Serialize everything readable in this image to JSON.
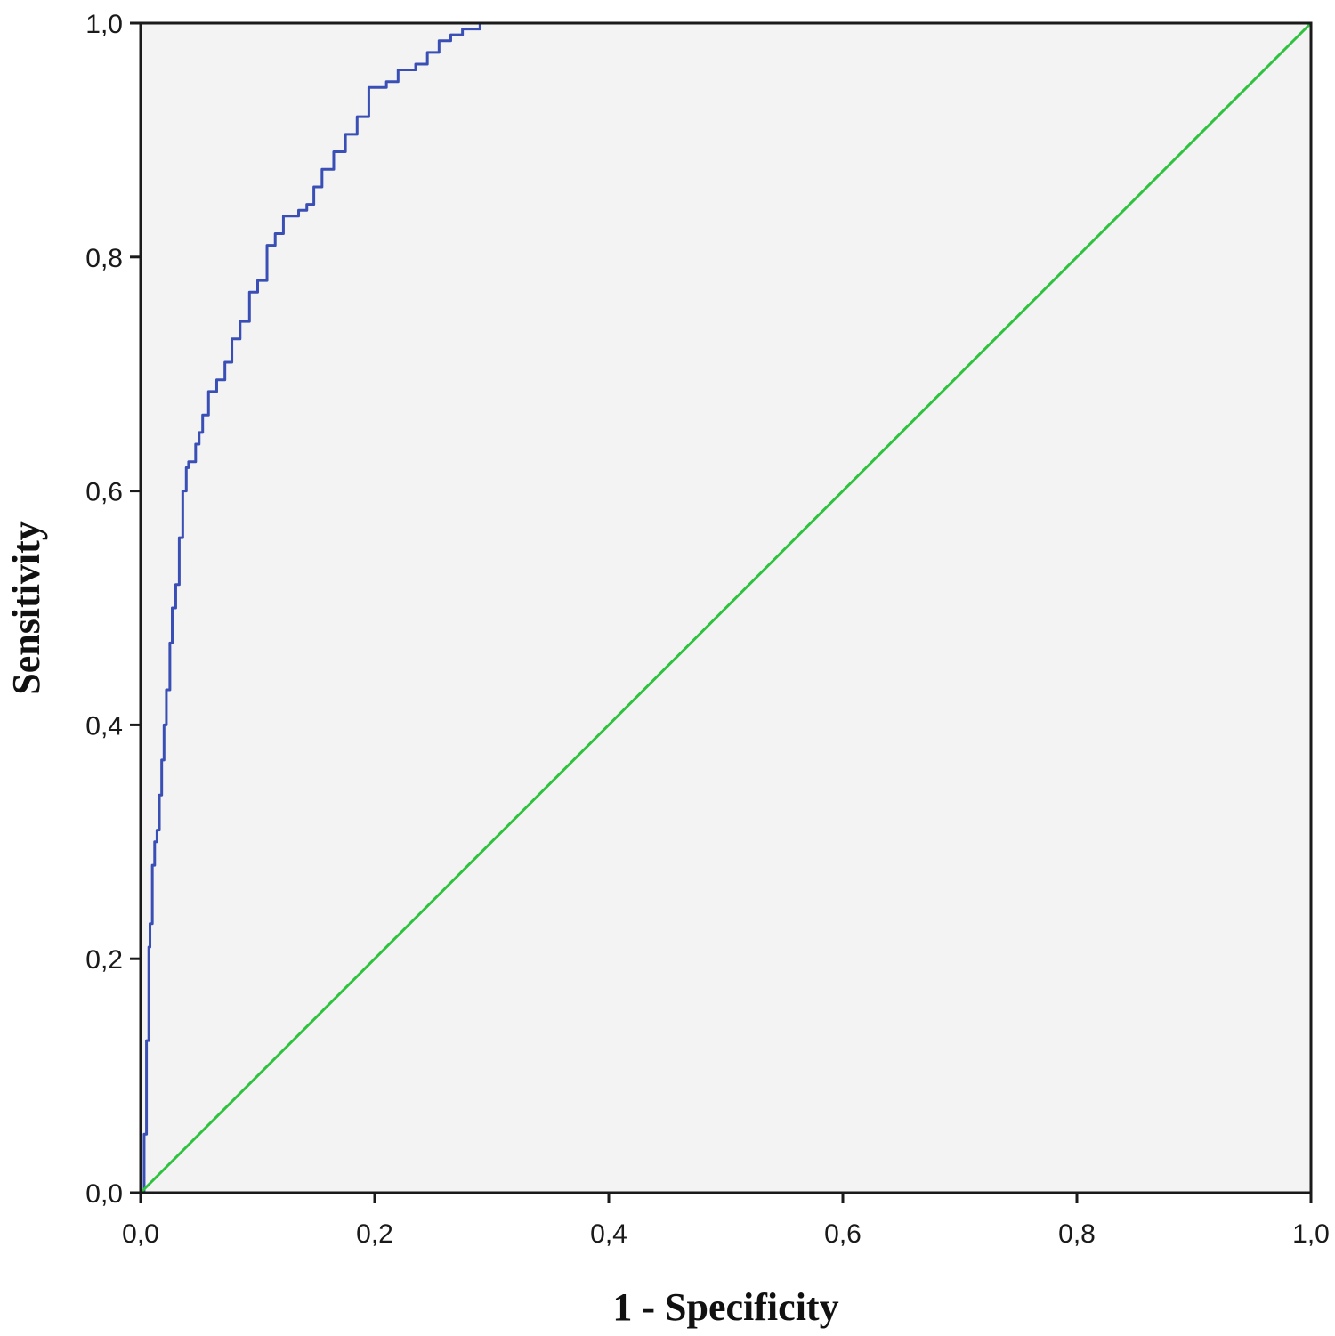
{
  "chart_data": {
    "type": "line",
    "title": "",
    "xlabel": "1 - Specificity",
    "ylabel": "Sensitivity",
    "xlim": [
      0,
      1
    ],
    "ylim": [
      0,
      1
    ],
    "xticks": [
      "0,0",
      "0,2",
      "0,4",
      "0,6",
      "0,8",
      "1,0"
    ],
    "yticks": [
      "0,0",
      "0,2",
      "0,4",
      "0,6",
      "0,8",
      "1,0"
    ],
    "tick_values": [
      0,
      0.2,
      0.4,
      0.6,
      0.8,
      1.0
    ],
    "grid": false,
    "legend": "none",
    "colors": {
      "roc": "#3a4fb5",
      "reference": "#2ec23f",
      "plot_bg": "#f3f3f3",
      "frame": "#1a1a1a"
    },
    "series": [
      {
        "values_x": [
          0.0,
          0.003,
          0.005,
          0.007,
          0.008,
          0.01,
          0.012,
          0.014,
          0.016,
          0.018,
          0.02,
          0.022,
          0.025,
          0.027,
          0.03,
          0.033,
          0.036,
          0.039,
          0.041,
          0.044,
          0.047,
          0.05,
          0.053,
          0.058,
          0.065,
          0.072,
          0.078,
          0.085,
          0.093,
          0.1,
          0.108,
          0.115,
          0.122,
          0.128,
          0.135,
          0.142,
          0.148,
          0.155,
          0.165,
          0.175,
          0.185,
          0.195,
          0.21,
          0.22,
          0.235,
          0.245,
          0.255,
          0.265,
          0.275,
          0.29,
          0.3,
          0.32,
          0.34,
          0.36,
          0.38,
          0.4,
          0.5,
          0.7,
          1.0
        ],
        "values_y": [
          0.0,
          0.05,
          0.13,
          0.21,
          0.23,
          0.28,
          0.3,
          0.31,
          0.34,
          0.37,
          0.4,
          0.43,
          0.47,
          0.5,
          0.52,
          0.56,
          0.6,
          0.62,
          0.625,
          0.625,
          0.64,
          0.65,
          0.665,
          0.685,
          0.695,
          0.71,
          0.73,
          0.745,
          0.77,
          0.78,
          0.81,
          0.82,
          0.835,
          0.835,
          0.84,
          0.845,
          0.86,
          0.875,
          0.89,
          0.905,
          0.92,
          0.945,
          0.95,
          0.96,
          0.965,
          0.975,
          0.985,
          0.99,
          0.995,
          1.0,
          1.0,
          1.0,
          1.0,
          1.0,
          1.0,
          1.0,
          1.0,
          1.0,
          1.0
        ]
      },
      {
        "values_x": [
          0,
          1
        ],
        "values_y": [
          0,
          1
        ]
      }
    ]
  }
}
